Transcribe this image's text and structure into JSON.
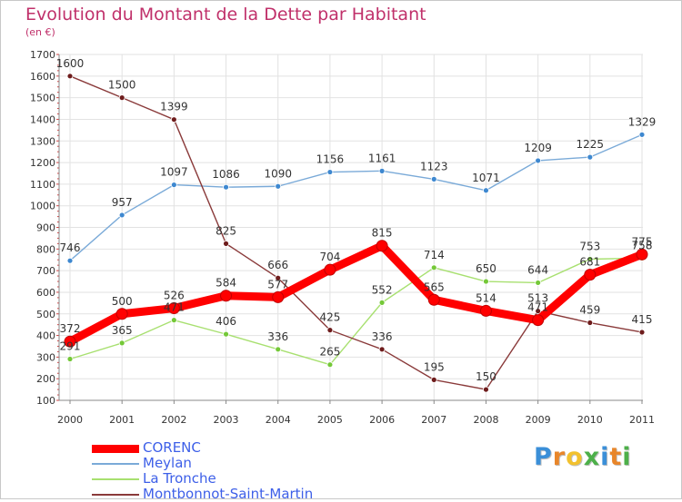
{
  "title": "Evolution du Montant de la Dette par Habitant",
  "subtitle": "(en €)",
  "logo": {
    "letters": [
      {
        "char": "P",
        "color": "#3b8fd8"
      },
      {
        "char": "r",
        "color": "#e8862a"
      },
      {
        "char": "o",
        "color": "#f2c12e"
      },
      {
        "char": "x",
        "color": "#4db04a"
      },
      {
        "char": "i",
        "color": "#3b8fd8"
      },
      {
        "char": "t",
        "color": "#e8862a"
      },
      {
        "char": "i",
        "color": "#4db04a"
      }
    ]
  },
  "chart_data": {
    "type": "line",
    "title": "Evolution du Montant de la Dette par Habitant",
    "subtitle": "(en €)",
    "xlabel": "",
    "ylabel": "",
    "x": [
      "2000",
      "2001",
      "2002",
      "2003",
      "2004",
      "2005",
      "2006",
      "2007",
      "2008",
      "2009",
      "2010",
      "2011"
    ],
    "ylim": [
      100,
      1700
    ],
    "yticks": [
      100,
      200,
      300,
      400,
      500,
      600,
      700,
      800,
      900,
      1000,
      1100,
      1200,
      1300,
      1400,
      1500,
      1600,
      1700
    ],
    "grid": true,
    "legend_position": "bottom-left",
    "series": [
      {
        "name": "CORENC",
        "color": "#ff0000",
        "marker_color": "#ff0000",
        "emphasis": true,
        "values": [
          372,
          500,
          526,
          584,
          577,
          704,
          815,
          565,
          514,
          471,
          681,
          775
        ]
      },
      {
        "name": "Meylan",
        "color": "#7aaad8",
        "marker_color": "#3e88d0",
        "emphasis": false,
        "values": [
          746,
          957,
          1097,
          1086,
          1090,
          1156,
          1161,
          1123,
          1071,
          1209,
          1225,
          1329
        ]
      },
      {
        "name": "La Tronche",
        "color": "#a8e070",
        "marker_color": "#74c838",
        "emphasis": false,
        "values": [
          291,
          365,
          471,
          406,
          336,
          265,
          552,
          714,
          650,
          644,
          753,
          758
        ]
      },
      {
        "name": "Montbonnot-Saint-Martin",
        "color": "#8a3a3a",
        "marker_color": "#6e1c1c",
        "emphasis": false,
        "values": [
          1600,
          1500,
          1399,
          825,
          666,
          425,
          336,
          195,
          150,
          513,
          459,
          415
        ]
      }
    ]
  }
}
